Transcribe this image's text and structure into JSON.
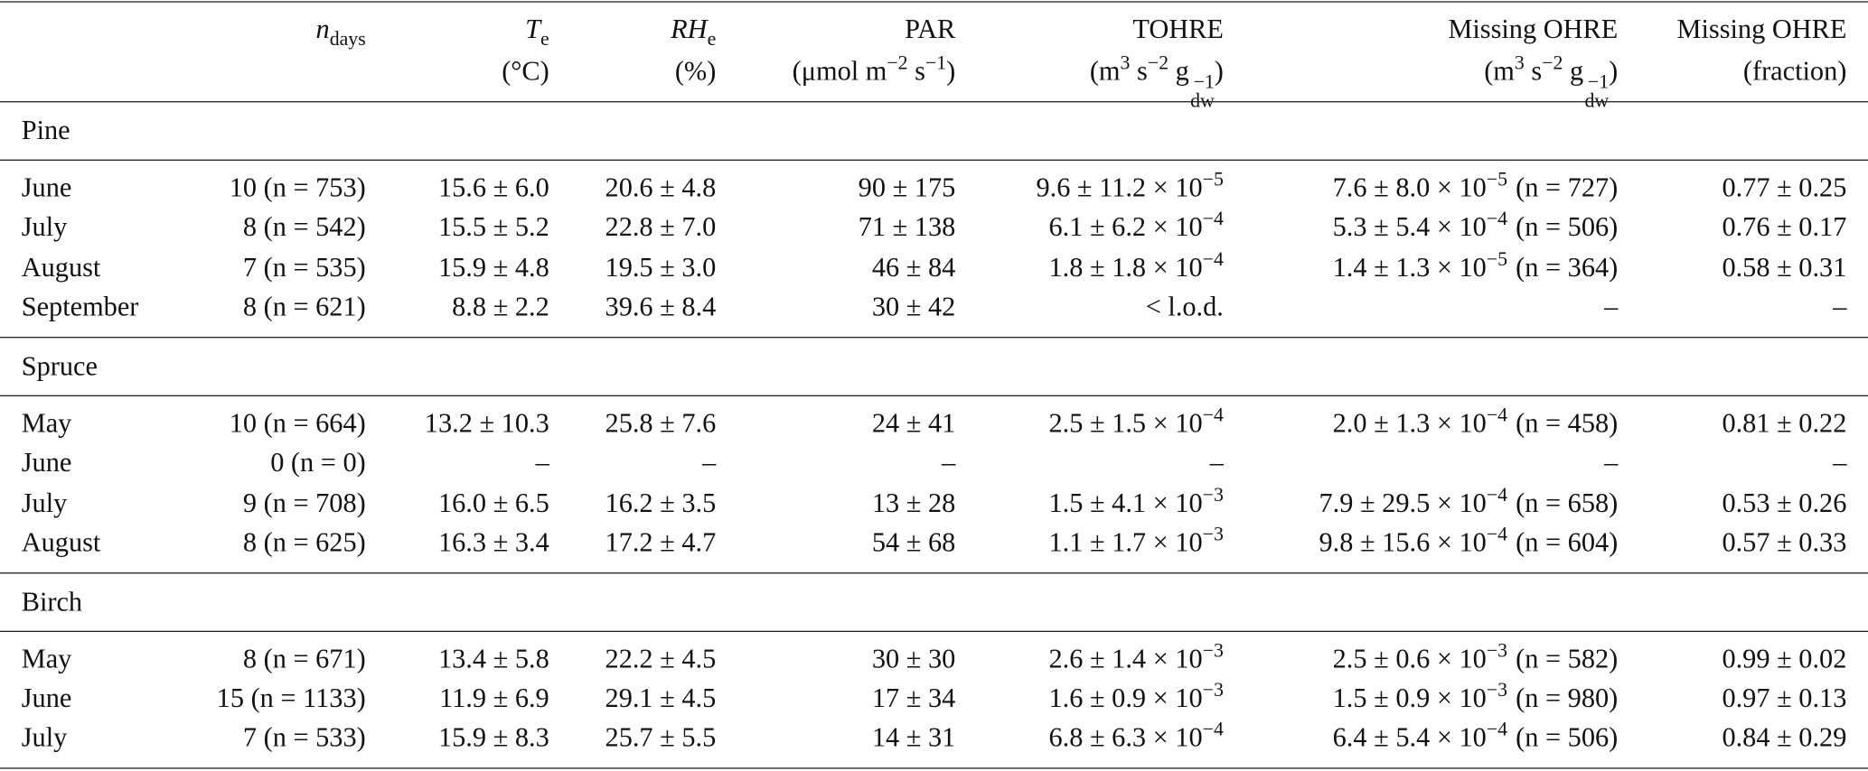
{
  "table": {
    "header": [
      {
        "symbol": "n",
        "sub": "days"
      },
      {
        "symbol": "T",
        "sub": "e",
        "unit": [
          {
            "text": "(°C)"
          }
        ]
      },
      {
        "symbol": "RH",
        "sub": "e",
        "unit": [
          {
            "text": "(%)"
          }
        ]
      },
      {
        "label": "PAR",
        "unit": [
          {
            "text": "(μmol m"
          },
          {
            "sup": "−2"
          },
          {
            "text": " s"
          },
          {
            "sup": "−1"
          },
          {
            "text": ")"
          }
        ]
      },
      {
        "label": "TOHRE",
        "unit": [
          {
            "text": "(m"
          },
          {
            "sup": "3"
          },
          {
            "text": " s"
          },
          {
            "sup": "−2"
          },
          {
            "text": " g"
          },
          {
            "sup": "−1",
            "sub": "dw"
          },
          {
            "text": ")"
          }
        ]
      },
      {
        "label": "Missing OHRE",
        "unit": [
          {
            "text": "(m"
          },
          {
            "sup": "3"
          },
          {
            "text": " s"
          },
          {
            "sup": "−2"
          },
          {
            "text": " g"
          },
          {
            "sup": "−1",
            "sub": "dw"
          },
          {
            "text": ")"
          }
        ]
      },
      {
        "label": "Missing OHRE",
        "unit": [
          {
            "text": "(fraction)"
          }
        ]
      }
    ],
    "groups": [
      {
        "name": "Pine",
        "rows": [
          [
            "June",
            "10 (n = 753)",
            "15.6 ± 6.0",
            "20.6 ± 4.8",
            "90 ± 175",
            {
              "text": "9.6 ± 11.2 × 10",
              "exp": "−5"
            },
            {
              "text": "7.6 ± 8.0 × 10",
              "exp": "−5",
              "n": "(n = 727)"
            },
            "0.77 ± 0.25"
          ],
          [
            "July",
            "8 (n = 542)",
            "15.5 ± 5.2",
            "22.8 ± 7.0",
            "71 ± 138",
            {
              "text": "6.1 ± 6.2 × 10",
              "exp": "−4"
            },
            {
              "text": "5.3 ± 5.4 × 10",
              "exp": "−4",
              "n": "(n = 506)"
            },
            "0.76 ± 0.17"
          ],
          [
            "August",
            "7 (n = 535)",
            "15.9 ± 4.8",
            "19.5 ± 3.0",
            "46 ± 84",
            {
              "text": "1.8 ± 1.8 × 10",
              "exp": "−4"
            },
            {
              "text": "1.4 ± 1.3 × 10",
              "exp": "−5",
              "n": "(n = 364)"
            },
            "0.58 ± 0.31"
          ],
          [
            "September",
            "8 (n = 621)",
            "8.8 ± 2.2",
            "39.6 ± 8.4",
            "30 ± 42",
            "< l.o.d.",
            "–",
            "–"
          ]
        ]
      },
      {
        "name": "Spruce",
        "rows": [
          [
            "May",
            "10 (n = 664)",
            "13.2 ± 10.3",
            "25.8 ± 7.6",
            "24 ± 41",
            {
              "text": "2.5 ± 1.5 × 10",
              "exp": "−4"
            },
            {
              "text": "2.0 ± 1.3 × 10",
              "exp": "−4",
              "n": "(n = 458)"
            },
            "0.81 ± 0.22"
          ],
          [
            "June",
            "0 (n = 0)",
            "–",
            "–",
            "–",
            "–",
            "–",
            "–"
          ],
          [
            "July",
            "9 (n = 708)",
            "16.0 ± 6.5",
            "16.2 ± 3.5",
            "13 ± 28",
            {
              "text": "1.5 ± 4.1 × 10",
              "exp": "−3"
            },
            {
              "text": "7.9 ± 29.5 × 10",
              "exp": "−4",
              "n": "(n = 658)"
            },
            "0.53 ± 0.26"
          ],
          [
            "August",
            "8 (n = 625)",
            "16.3 ± 3.4",
            "17.2 ± 4.7",
            "54 ± 68",
            {
              "text": "1.1 ± 1.7 × 10",
              "exp": "−3"
            },
            {
              "text": "9.8 ± 15.6 × 10",
              "exp": "−4",
              "n": "(n = 604)"
            },
            "0.57 ± 0.33"
          ]
        ]
      },
      {
        "name": "Birch",
        "rows": [
          [
            "May",
            "8 (n = 671)",
            "13.4 ± 5.8",
            "22.2 ± 4.5",
            "30 ± 30",
            {
              "text": "2.6 ± 1.4 × 10",
              "exp": "−3"
            },
            {
              "text": "2.5 ± 0.6 × 10",
              "exp": "−3",
              "n": "(n = 582)"
            },
            "0.99 ± 0.02"
          ],
          [
            "June",
            "15 (n = 1133)",
            "11.9 ± 6.9",
            "29.1 ± 4.5",
            "17 ± 34",
            {
              "text": "1.6 ± 0.9 × 10",
              "exp": "−3"
            },
            {
              "text": "1.5 ± 0.9 × 10",
              "exp": "−3",
              "n": "(n = 980)"
            },
            "0.97 ± 0.13"
          ],
          [
            "July",
            "7 (n = 533)",
            "15.9 ± 8.3",
            "25.7 ± 5.5",
            "14 ± 31",
            {
              "text": "6.8 ± 6.3 × 10",
              "exp": "−4"
            },
            {
              "text": "6.4 ± 5.4 × 10",
              "exp": "−4",
              "n": "(n = 506)"
            },
            "0.84 ± 0.29"
          ]
        ]
      }
    ]
  }
}
